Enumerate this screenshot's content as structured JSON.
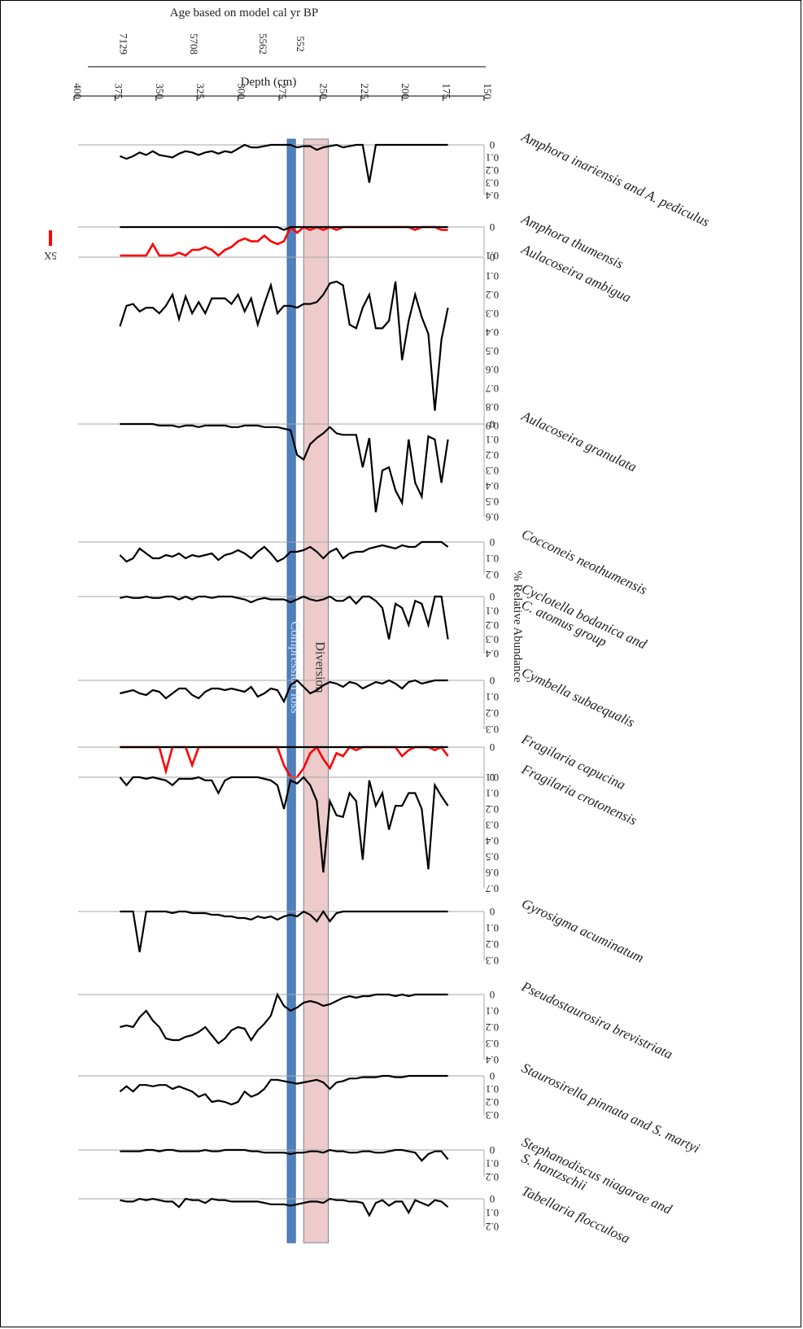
{
  "chart_data": {
    "type": "line",
    "orientation": "depth-on-horizontal, abundance-downward, text rotated 180deg",
    "age_axis": {
      "title": "Age based on model cal yr BP",
      "ticks": [
        {
          "label": "7129",
          "depth": 372
        },
        {
          "label": "5708",
          "depth": 329
        },
        {
          "label": "5562",
          "depth": 287
        },
        {
          "label": "552",
          "depth": 264
        }
      ]
    },
    "depth_axis": {
      "title": "Depth (cm)",
      "range": [
        150,
        400
      ],
      "ticks": [
        150,
        175,
        200,
        225,
        250,
        275,
        300,
        325,
        350,
        375,
        400
      ]
    },
    "abundance_axis_title": "% Relative Abundance",
    "zones": [
      {
        "label": "Compression loss",
        "from": 265,
        "to": 270,
        "color": "#4f81bd"
      },
      {
        "label": "Diversion",
        "from": 245,
        "to": 260,
        "color": "#e6b9b8"
      }
    ],
    "legend": {
      "label": "5X",
      "color": "#ff0000"
    },
    "depths": [
      172,
      176,
      180,
      184,
      188,
      192,
      196,
      200,
      204,
      208,
      212,
      216,
      220,
      224,
      228,
      232,
      236,
      240,
      244,
      248,
      252,
      256,
      260,
      264,
      268,
      272,
      276,
      280,
      284,
      288,
      292,
      296,
      300,
      304,
      308,
      312,
      316,
      320,
      324,
      328,
      332,
      336,
      340,
      344,
      348,
      352,
      356,
      360,
      364,
      368,
      372
    ],
    "panels": [
      {
        "name": "Amphora inariensis and A. pediculus",
        "ticks": [
          "0",
          "0.1",
          "0.2",
          "0.3",
          "0.4"
        ],
        "max": 0.4,
        "values": [
          0,
          0,
          0,
          0,
          0,
          0,
          0,
          0,
          0,
          0,
          0,
          0.0,
          0.3,
          0,
          0,
          0.01,
          0.02,
          0,
          0.01,
          0.02,
          0.04,
          0.01,
          0.01,
          0.02,
          0,
          0,
          0,
          0,
          0.01,
          0.02,
          0.02,
          0,
          0.03,
          0.06,
          0.05,
          0.07,
          0.05,
          0.06,
          0.08,
          0.06,
          0.05,
          0.07,
          0.1,
          0.09,
          0.08,
          0.05,
          0.08,
          0.06,
          0.09,
          0.11,
          0.09
        ]
      },
      {
        "name": "Amphora thumensis",
        "ticks": [
          "0",
          "0.1"
        ],
        "max": 0.1,
        "values": [
          0,
          0,
          0,
          0,
          0,
          0,
          0,
          0,
          0,
          0,
          0,
          0,
          0,
          0,
          0,
          0,
          0,
          0,
          0,
          0,
          0,
          0,
          0,
          0,
          0,
          0.01,
          0,
          0,
          0,
          0,
          0,
          0,
          0,
          0,
          0,
          0,
          0,
          0,
          0,
          0,
          0,
          0,
          0,
          0,
          0,
          0,
          0,
          0,
          0,
          0,
          0
        ],
        "values_5x": [
          0.01,
          0.01,
          0,
          0,
          0,
          0.01,
          0,
          0,
          0,
          0,
          0,
          0,
          0,
          0,
          0,
          0,
          0,
          0.01,
          0,
          0.01,
          0,
          0.01,
          0,
          0.02,
          0,
          0.05,
          0.06,
          0.05,
          0.03,
          0.05,
          0.05,
          0.04,
          0.05,
          0.07,
          0.08,
          0.12,
          0.08,
          0.07,
          0.08,
          0.08,
          0.1,
          0.09,
          0.14,
          0.11,
          0.1,
          0.06,
          0.3,
          0.14,
          0.13,
          0.1,
          0.1
        ]
      },
      {
        "name": "Aulacoseira ambigua",
        "ticks": [
          "0",
          "0.1",
          "0.2",
          "0.3",
          "0.4",
          "0.5",
          "0.6",
          "0.7",
          "0.8",
          "0.9"
        ],
        "max": 0.9,
        "values": [
          0.27,
          0.44,
          0.82,
          0.41,
          0.32,
          0.2,
          0.34,
          0.55,
          0.13,
          0.34,
          0.38,
          0.38,
          0.2,
          0.27,
          0.38,
          0.36,
          0.15,
          0.13,
          0.14,
          0.2,
          0.24,
          0.25,
          0.25,
          0.27,
          0.26,
          0.26,
          0.3,
          0.15,
          0.25,
          0.36,
          0.22,
          0.29,
          0.2,
          0.25,
          0.22,
          0.22,
          0.22,
          0.3,
          0.24,
          0.3,
          0.21,
          0.33,
          0.2,
          0.26,
          0.3,
          0.27,
          0.27,
          0.29,
          0.25,
          0.26,
          0.37
        ]
      },
      {
        "name": "Aulacoseira granulata",
        "ticks": [
          "0",
          "0.1",
          "0.2",
          "0.3",
          "0.4",
          "0.5",
          "0.6"
        ],
        "max": 0.6,
        "values": [
          0.1,
          0.38,
          0.1,
          0.08,
          0.47,
          0.38,
          0.1,
          0.51,
          0.43,
          0.28,
          0.3,
          0.57,
          0.09,
          0.28,
          0.07,
          0.07,
          0.07,
          0.06,
          0.02,
          0.06,
          0.09,
          0.13,
          0.23,
          0.2,
          0.04,
          0.03,
          0.02,
          0.02,
          0.02,
          0.01,
          0.01,
          0.01,
          0.02,
          0.02,
          0.01,
          0.01,
          0.01,
          0.01,
          0.02,
          0.01,
          0.01,
          0.02,
          0.01,
          0.01,
          0.01,
          0.0,
          0.0,
          0.0,
          0.0,
          0.0,
          0.0
        ]
      },
      {
        "name": "Cocconeis neothumensis",
        "ticks": [
          "0",
          "0.1",
          "0.2"
        ],
        "max": 0.2,
        "values": [
          0.03,
          0,
          0,
          0,
          0,
          0.03,
          0.03,
          0.02,
          0.04,
          0.03,
          0.02,
          0.03,
          0.04,
          0.06,
          0.06,
          0.07,
          0.1,
          0.04,
          0.06,
          0.1,
          0.06,
          0.03,
          0.05,
          0.06,
          0.06,
          0.1,
          0.12,
          0.07,
          0.03,
          0.06,
          0.1,
          0.07,
          0.05,
          0.07,
          0.08,
          0.11,
          0.07,
          0.08,
          0.09,
          0.08,
          0.1,
          0.07,
          0.09,
          0.08,
          0.1,
          0.1,
          0.07,
          0.04,
          0.1,
          0.12,
          0.08
        ]
      },
      {
        "name": "Cyclotella bodanica and C. atomus group",
        "ticks": [
          "0",
          "0.1",
          "0.2",
          "0.3",
          "0.4"
        ],
        "max": 0.4,
        "values": [
          0.3,
          0,
          0,
          0.2,
          0.05,
          0.03,
          0.2,
          0.08,
          0.05,
          0.3,
          0.08,
          0.03,
          0,
          0,
          0.05,
          0,
          0.03,
          0.03,
          0,
          0.02,
          0.03,
          0.02,
          0,
          0.02,
          0.04,
          0.02,
          0.02,
          0.02,
          0.01,
          0.02,
          0.04,
          0.02,
          0.01,
          0.0,
          0.0,
          0.0,
          0.01,
          0.0,
          0.0,
          0.02,
          0.0,
          0.02,
          0.0,
          0.0,
          0.01,
          0.01,
          0.0,
          0.01,
          0.01,
          0.0,
          0.01
        ]
      },
      {
        "name": "Cymbella subaequalis",
        "ticks": [
          "0",
          "0.1",
          "0.2",
          "0.3"
        ],
        "max": 0.3,
        "values": [
          0,
          0,
          0,
          0.01,
          0.02,
          0,
          0.01,
          0.05,
          0.02,
          0,
          0.02,
          0.01,
          0.03,
          0.05,
          0.02,
          0.01,
          0.04,
          0.02,
          0.01,
          0.03,
          0.06,
          0.08,
          0.04,
          0.0,
          0.03,
          0.13,
          0.06,
          0.05,
          0.08,
          0.1,
          0.04,
          0.07,
          0.06,
          0.05,
          0.06,
          0.05,
          0.05,
          0.07,
          0.11,
          0.09,
          0.05,
          0.05,
          0.08,
          0.11,
          0.07,
          0.06,
          0.09,
          0.08,
          0.06,
          0.07,
          0.08
        ]
      },
      {
        "name": "Fragilaria capucina",
        "ticks": [
          "0",
          "0.1"
        ],
        "max": 0.1,
        "values": [
          0,
          0,
          0,
          0,
          0,
          0,
          0,
          0,
          0,
          0,
          0,
          0,
          0,
          0,
          0,
          0,
          0,
          0,
          0,
          0,
          0,
          0,
          0,
          0,
          0,
          0,
          0,
          0,
          0,
          0,
          0,
          0,
          0,
          0,
          0,
          0,
          0,
          0,
          0,
          0,
          0,
          0,
          0,
          0,
          0,
          0,
          0,
          0,
          0,
          0,
          0
        ],
        "values_5x": [
          0.03,
          0,
          0.01,
          0,
          0,
          0,
          0.01,
          0.03,
          0,
          0,
          0,
          0,
          0,
          0,
          0.01,
          0.0,
          0.03,
          0.02,
          0.07,
          0.04,
          0,
          0.02,
          0.07,
          0.13,
          0.11,
          0.06,
          0,
          0,
          0,
          0,
          0,
          0,
          0,
          0,
          0,
          0,
          0,
          0,
          0,
          0.06,
          0,
          0,
          0,
          0.08,
          0,
          0,
          0,
          0,
          0,
          0,
          0
        ]
      },
      {
        "name": "Fragilaria crotonensis",
        "ticks": [
          "0",
          "0.1",
          "0.2",
          "0.3",
          "0.4",
          "0.5",
          "0.6",
          "0.7"
        ],
        "max": 0.7,
        "values": [
          0.18,
          0.12,
          0.05,
          0.58,
          0.2,
          0.1,
          0.1,
          0.18,
          0.18,
          0.33,
          0.1,
          0.18,
          0.02,
          0.52,
          0.15,
          0.1,
          0.25,
          0.24,
          0.15,
          0.6,
          0.15,
          0.05,
          0,
          0.04,
          0.02,
          0.2,
          0.05,
          0.02,
          0.01,
          0,
          0,
          0,
          0,
          0,
          0.02,
          0.1,
          0.02,
          0.02,
          0,
          0.01,
          0.01,
          0.01,
          0.05,
          0.02,
          0.01,
          0,
          0.01,
          0,
          0,
          0.05,
          0
        ]
      },
      {
        "name": "Gyrosigma acuminatum",
        "ticks": [
          "0",
          "0.1",
          "0.2",
          "0.3"
        ],
        "max": 0.3,
        "values": [
          0,
          0,
          0,
          0,
          0,
          0,
          0,
          0,
          0,
          0,
          0,
          0,
          0,
          0,
          0,
          0,
          0,
          0.01,
          0.06,
          0.0,
          0.06,
          0.02,
          0.0,
          0.03,
          0.02,
          0.03,
          0.05,
          0.03,
          0.04,
          0.03,
          0.05,
          0.04,
          0.04,
          0.03,
          0.03,
          0.02,
          0.02,
          0.01,
          0.01,
          0.01,
          0,
          0.0,
          0.01,
          0,
          0,
          0,
          0,
          0.25,
          0,
          0,
          0
        ]
      },
      {
        "name": "Pseudostaurosira brevistriata",
        "ticks": [
          "0",
          "0.1",
          "0.2",
          "0.3",
          "0.4"
        ],
        "max": 0.4,
        "values": [
          0,
          0,
          0,
          0,
          0,
          0,
          0.01,
          0,
          0.01,
          0,
          0,
          0,
          0.01,
          0.01,
          0.02,
          0.01,
          0.02,
          0.04,
          0.06,
          0.07,
          0.05,
          0.04,
          0.05,
          0.08,
          0.1,
          0.07,
          0,
          0.13,
          0.18,
          0.22,
          0.28,
          0.21,
          0.2,
          0.22,
          0.27,
          0.3,
          0.25,
          0.2,
          0.23,
          0.25,
          0.26,
          0.28,
          0.28,
          0.27,
          0.2,
          0.16,
          0.1,
          0.14,
          0.2,
          0.19,
          0.2
        ]
      },
      {
        "name": "Staurosirella pinnata and S. martyi",
        "ticks": [
          "0",
          "0.1",
          "0.2",
          "0.3"
        ],
        "max": 0.3,
        "values": [
          0,
          0,
          0,
          0,
          0,
          0,
          0,
          0.01,
          0.01,
          0,
          0,
          0.01,
          0.01,
          0.01,
          0.02,
          0.02,
          0.04,
          0.05,
          0.1,
          0.05,
          0.03,
          0.04,
          0.05,
          0.06,
          0.05,
          0.04,
          0.03,
          0.03,
          0.1,
          0.14,
          0.16,
          0.12,
          0.2,
          0.22,
          0.2,
          0.19,
          0.2,
          0.14,
          0.16,
          0.12,
          0.1,
          0.08,
          0.1,
          0.07,
          0.07,
          0.08,
          0.07,
          0.07,
          0.12,
          0.08,
          0.12
        ]
      },
      {
        "name": "Stephanodiscus niagarae and S. hantzschii",
        "ticks": [
          "0",
          "0.1",
          "0.2"
        ],
        "max": 0.2,
        "values": [
          0.07,
          0.01,
          0.01,
          0.03,
          0.08,
          0.02,
          0.01,
          0,
          0,
          0.01,
          0.02,
          0.02,
          0.01,
          0.01,
          0.02,
          0.02,
          0.01,
          0.01,
          0,
          0.02,
          0.01,
          0.01,
          0.02,
          0.02,
          0.03,
          0.02,
          0.02,
          0.02,
          0.02,
          0.01,
          0.01,
          0,
          0,
          0,
          0,
          0.01,
          0.01,
          0,
          0.01,
          0.01,
          0.01,
          0.01,
          0,
          0,
          0.01,
          0,
          0,
          0.01,
          0.01,
          0.01,
          0.01
        ]
      },
      {
        "name": "Tabellaria flocculosa",
        "ticks": [
          "0",
          "0.1",
          "0.2"
        ],
        "max": 0.2,
        "values": [
          0.06,
          0.02,
          0.01,
          0.05,
          0.03,
          0.01,
          0.1,
          0.02,
          0.02,
          0.05,
          0.01,
          0.03,
          0.12,
          0.03,
          0.02,
          0.02,
          0.01,
          0.01,
          0,
          0.03,
          0.02,
          0.02,
          0.03,
          0.04,
          0.05,
          0.04,
          0.04,
          0.04,
          0.03,
          0.02,
          0.02,
          0.02,
          0.02,
          0.02,
          0.01,
          0.01,
          0,
          0.03,
          0.01,
          0.01,
          0,
          0.06,
          0.02,
          0.02,
          0.01,
          0.0,
          0.01,
          0,
          0.02,
          0.02,
          0.01
        ]
      }
    ]
  }
}
